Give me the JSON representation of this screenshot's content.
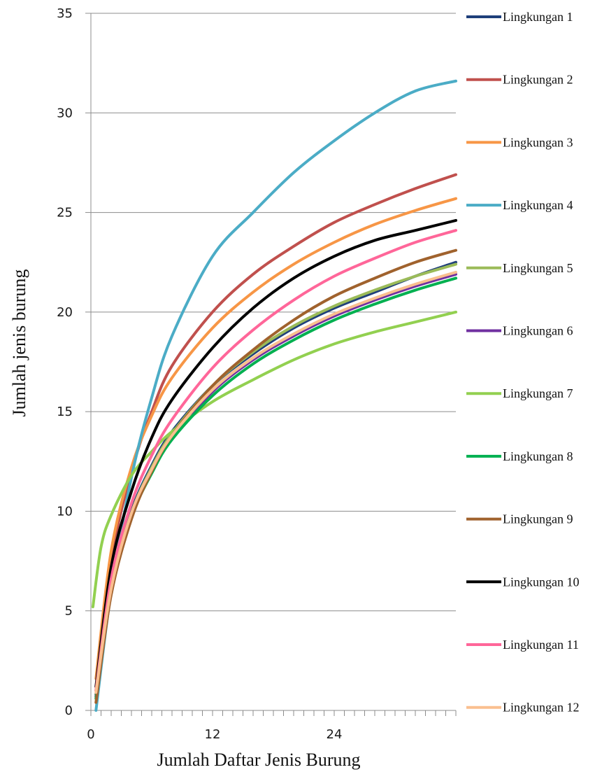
{
  "chart_data": {
    "type": "line",
    "title": "",
    "xlabel": "Jumlah Daftar  Jenis Burung",
    "ylabel": "Jumlah jenis burung",
    "xlim": [
      0,
      36
    ],
    "ylim": [
      0,
      35
    ],
    "x_ticks": [
      0,
      12,
      24
    ],
    "y_ticks": [
      0,
      5,
      10,
      15,
      20,
      25,
      30,
      35
    ],
    "grid": "horizontal",
    "legend_position": "right",
    "series": [
      {
        "name": "Lingkungan 1",
        "color": "#1f3f7a",
        "x": [
          0.5,
          2,
          4,
          6,
          8,
          12,
          16,
          20,
          24,
          28,
          32,
          36
        ],
        "y": [
          0.8,
          6.3,
          10.0,
          12.3,
          14.0,
          16.3,
          17.9,
          19.2,
          20.2,
          21.0,
          21.8,
          22.5
        ]
      },
      {
        "name": "Lingkungan 2",
        "color": "#c0504d",
        "x": [
          0.5,
          2,
          4,
          6,
          8,
          12,
          16,
          20,
          24,
          28,
          32,
          36
        ],
        "y": [
          1.0,
          7.5,
          12.0,
          15.0,
          17.3,
          20.0,
          21.9,
          23.3,
          24.5,
          25.4,
          26.2,
          26.9
        ]
      },
      {
        "name": "Lingkungan 3",
        "color": "#f79646",
        "x": [
          0.5,
          2,
          4,
          6,
          8,
          12,
          16,
          20,
          24,
          28,
          32,
          36
        ],
        "y": [
          1.6,
          8.0,
          12.2,
          14.8,
          16.7,
          19.2,
          21.0,
          22.4,
          23.5,
          24.4,
          25.1,
          25.7
        ]
      },
      {
        "name": "Lingkungan 4",
        "color": "#4bacc6",
        "x": [
          0.5,
          2,
          4,
          6,
          8,
          12,
          16,
          20,
          24,
          28,
          32,
          36
        ],
        "y": [
          0.0,
          6.0,
          11.7,
          15.7,
          18.8,
          22.8,
          25.0,
          27.0,
          28.6,
          30.0,
          31.1,
          31.6
        ]
      },
      {
        "name": "Lingkungan 5",
        "color": "#9bbb59",
        "x": [
          0.5,
          2,
          4,
          6,
          8,
          12,
          16,
          20,
          24,
          28,
          32,
          36
        ],
        "y": [
          0.8,
          6.2,
          9.9,
          12.2,
          13.9,
          16.3,
          18.0,
          19.3,
          20.3,
          21.1,
          21.8,
          22.4
        ]
      },
      {
        "name": "Lingkungan 6",
        "color": "#7030a0",
        "x": [
          0.5,
          2,
          4,
          6,
          8,
          12,
          16,
          20,
          24,
          28,
          32,
          36
        ],
        "y": [
          0.7,
          6.0,
          9.8,
          12.0,
          13.7,
          16.0,
          17.6,
          18.8,
          19.8,
          20.6,
          21.3,
          21.9
        ]
      },
      {
        "name": "Lingkungan 7",
        "color": "#92d050",
        "x": [
          0.2,
          1,
          2,
          4,
          6,
          8,
          12,
          16,
          20,
          24,
          28,
          32,
          36
        ],
        "y": [
          5.2,
          8.2,
          9.8,
          11.8,
          13.0,
          14.0,
          15.5,
          16.6,
          17.6,
          18.4,
          19.0,
          19.5,
          20.0
        ]
      },
      {
        "name": "Lingkungan 8",
        "color": "#00b050",
        "x": [
          0.5,
          2,
          4,
          6,
          8,
          12,
          16,
          20,
          24,
          28,
          32,
          36
        ],
        "y": [
          0.6,
          6.0,
          9.7,
          11.9,
          13.6,
          15.8,
          17.4,
          18.6,
          19.6,
          20.4,
          21.1,
          21.7
        ]
      },
      {
        "name": "Lingkungan 9",
        "color": "#a0622d",
        "x": [
          0.5,
          2,
          4,
          6,
          8,
          12,
          16,
          20,
          24,
          28,
          32,
          36
        ],
        "y": [
          0.4,
          5.8,
          9.6,
          12.0,
          13.8,
          16.3,
          18.1,
          19.6,
          20.8,
          21.7,
          22.5,
          23.1
        ]
      },
      {
        "name": "Lingkungan 10",
        "color": "#000000",
        "x": [
          0.5,
          2,
          4,
          6,
          8,
          12,
          16,
          20,
          24,
          28,
          32,
          36
        ],
        "y": [
          1.2,
          7.2,
          11.0,
          13.7,
          15.6,
          18.2,
          20.2,
          21.7,
          22.8,
          23.6,
          24.1,
          24.6
        ]
      },
      {
        "name": "Lingkungan 11",
        "color": "#ff6699",
        "x": [
          0.5,
          2,
          4,
          6,
          8,
          12,
          16,
          20,
          24,
          28,
          32,
          36
        ],
        "y": [
          1.0,
          6.6,
          10.4,
          12.8,
          14.6,
          17.2,
          19.1,
          20.6,
          21.8,
          22.7,
          23.5,
          24.1
        ]
      },
      {
        "name": "Lingkungan 12",
        "color": "#fabf8f",
        "x": [
          0.5,
          2,
          4,
          6,
          8,
          12,
          16,
          20,
          24,
          28,
          32,
          36
        ],
        "y": [
          0.9,
          6.1,
          9.9,
          12.1,
          13.8,
          16.1,
          17.7,
          18.9,
          19.9,
          20.7,
          21.4,
          22.0
        ]
      }
    ]
  }
}
